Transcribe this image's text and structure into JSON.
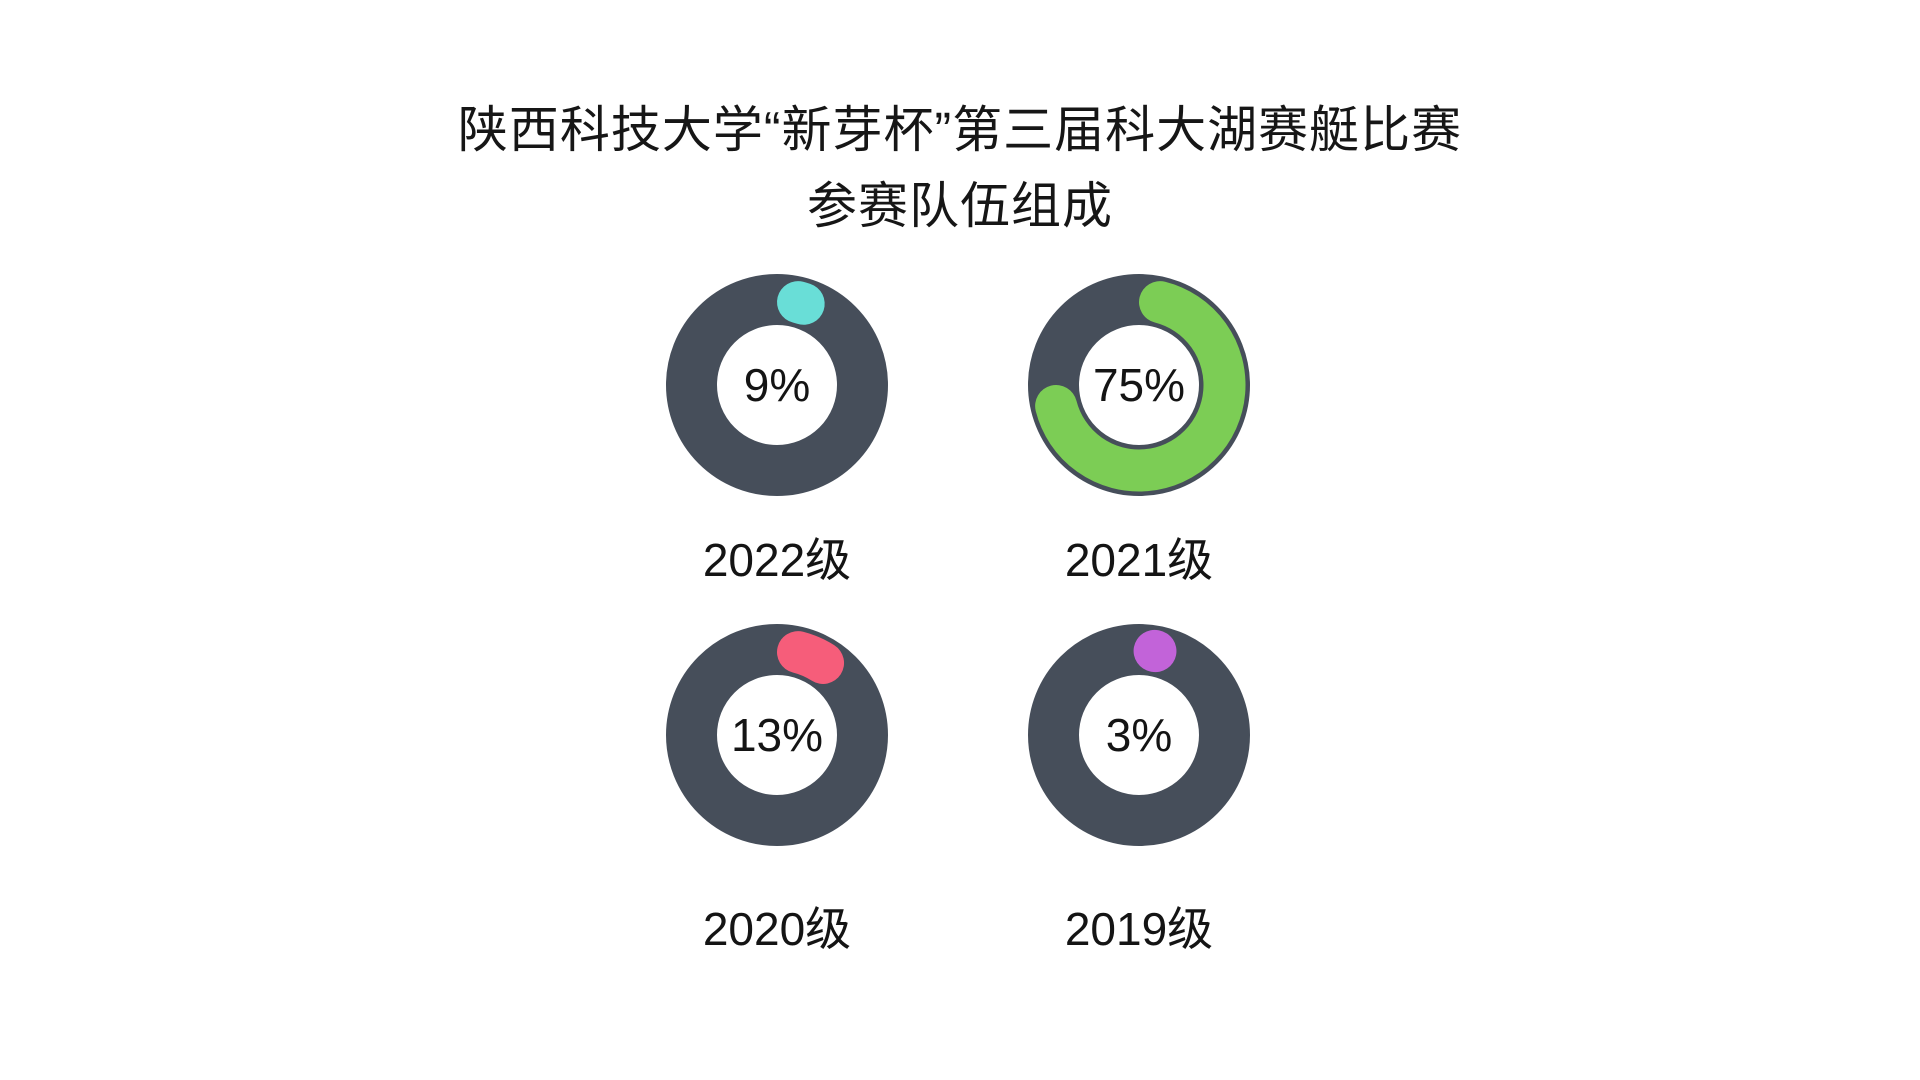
{
  "title": {
    "line1": "陕西科技大学“新芽杯”第三届科大湖赛艇比赛",
    "line2": "参赛队伍组成"
  },
  "chart_data": {
    "type": "pie",
    "subtype": "donut-progress-grid",
    "title": "陕西科技大学“新芽杯”第三届科大湖赛艇比赛 参赛队伍组成",
    "unit": "%",
    "legend_position": "none",
    "background": "#FFFFFF",
    "ring_color": "#464E5A",
    "donuts": [
      {
        "label": "2022级",
        "value": 9,
        "percent_label": "9%",
        "color": "#69DED7"
      },
      {
        "label": "2021级",
        "value": 75,
        "percent_label": "75%",
        "color": "#7CCD55"
      },
      {
        "label": "2020级",
        "value": 13,
        "percent_label": "13%",
        "color": "#F65D7A"
      },
      {
        "label": "2019级",
        "value": 3,
        "percent_label": "3%",
        "color": "#C263D9"
      }
    ]
  }
}
